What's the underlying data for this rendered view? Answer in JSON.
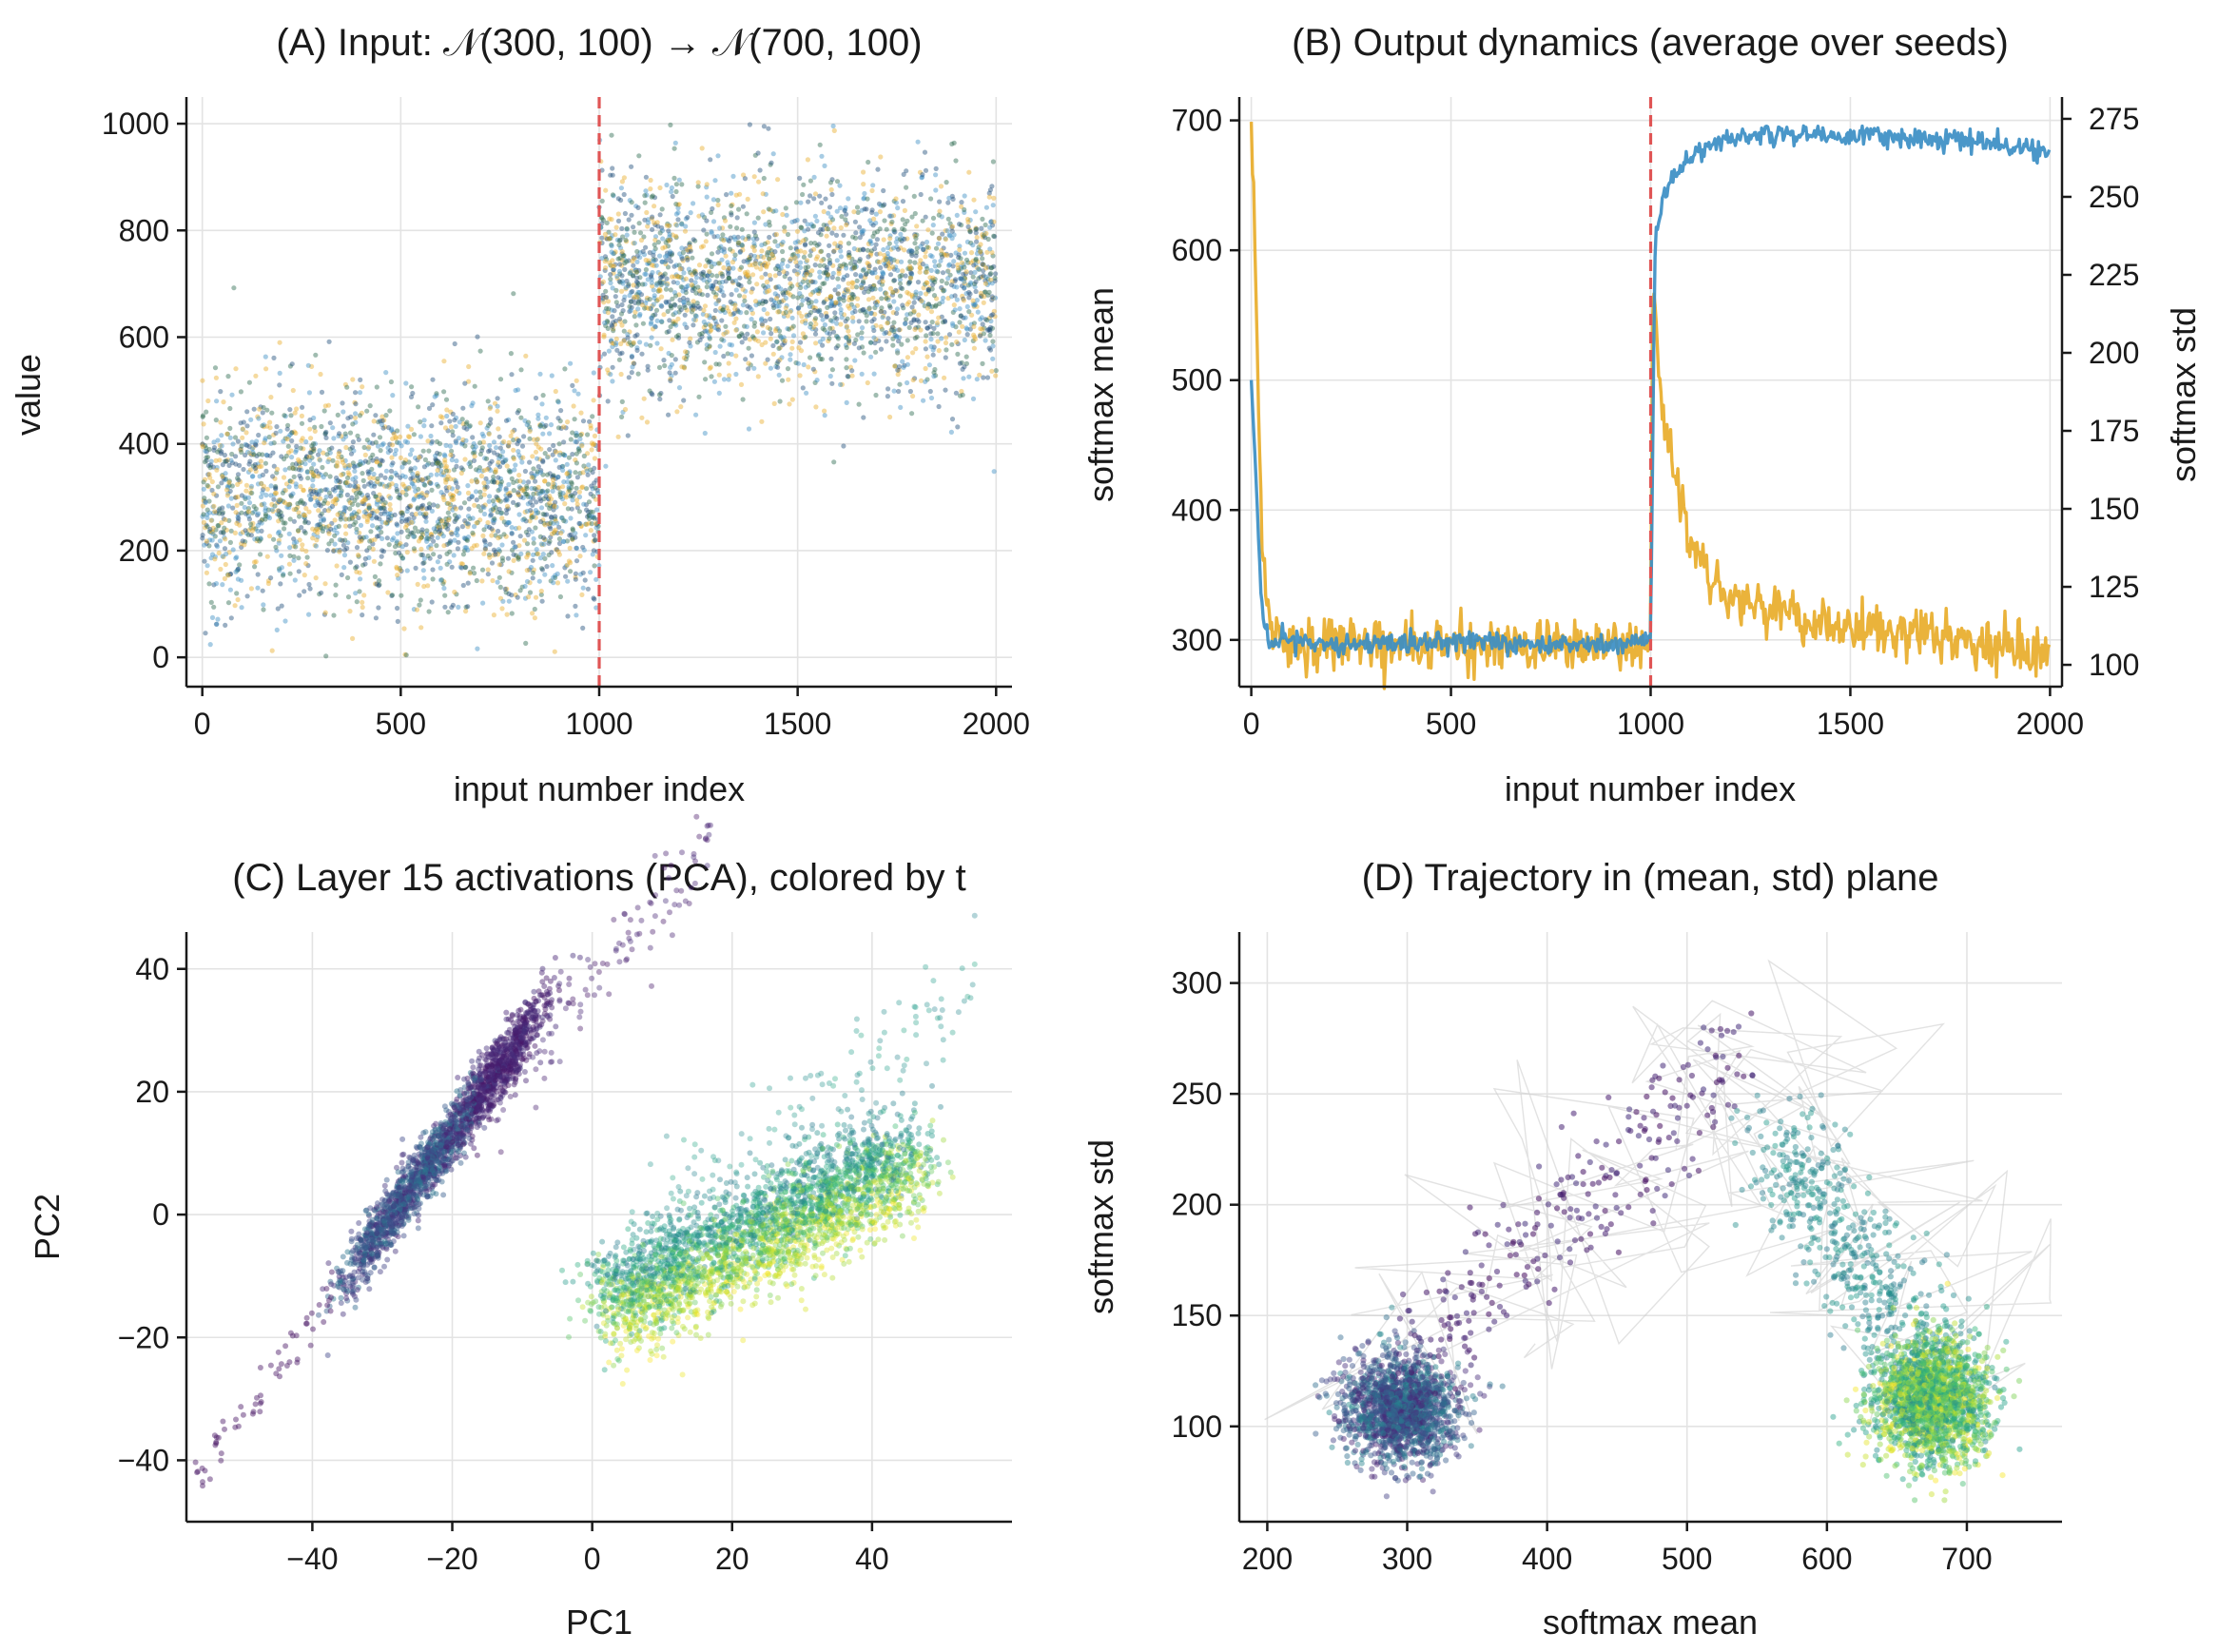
{
  "colors": {
    "mean": "#3b8ec4",
    "std": "#e8ad2a",
    "mean_text": "#2a7fb8",
    "std_text": "#dba11c",
    "change_line": "#e05555",
    "input_dots": [
      "#3b8ec4",
      "#e8ad2a",
      "#2d6a4f",
      "#1f4e79"
    ],
    "trajectory_line": "#cfcfcf"
  },
  "chart_data": [
    {
      "panel": "A",
      "type": "scatter",
      "title": "(A) Input: 𝒩(300, 100) → 𝒩(700, 100)",
      "xlabel": "input number index",
      "ylabel": "value",
      "xlim": [
        -40,
        2040
      ],
      "ylim": [
        -55,
        1050
      ],
      "xticks": [
        0,
        500,
        1000,
        1500,
        2000
      ],
      "yticks": [
        0,
        200,
        400,
        600,
        800,
        1000
      ],
      "grid": true,
      "segments": [
        {
          "x_range": [
            0,
            1000
          ],
          "mean": 300,
          "std": 100
        },
        {
          "x_range": [
            1000,
            2000
          ],
          "mean": 700,
          "std": 100
        }
      ],
      "change_point": 1000
    },
    {
      "panel": "B",
      "type": "line",
      "title": "(B) Output dynamics (average over seeds)",
      "xlabel": "input number index",
      "ylabel": "softmax mean",
      "ylabel_right": "softmax std",
      "xlim": [
        -30,
        2030
      ],
      "ylim": [
        264,
        718
      ],
      "ylim_right": [
        93,
        282
      ],
      "xticks": [
        0,
        500,
        1000,
        1500,
        2000
      ],
      "yticks": [
        300,
        400,
        500,
        600,
        700
      ],
      "yticks_right": [
        100,
        125,
        150,
        175,
        200,
        225,
        250,
        275
      ],
      "grid": true,
      "change_point": 1000,
      "series": [
        {
          "name": "softmax mean",
          "axis": "left",
          "x": [
            0,
            10,
            20,
            30,
            50,
            80,
            150,
            300,
            500,
            700,
            900,
            995,
            1000,
            1010,
            1030,
            1060,
            1100,
            1150,
            1200,
            1300,
            1400,
            1500,
            1600,
            1700,
            1800,
            1900,
            2000
          ],
          "values": [
            500,
            430,
            360,
            310,
            295,
            300,
            298,
            296,
            300,
            297,
            296,
            298,
            300,
            600,
            640,
            660,
            672,
            680,
            686,
            690,
            689,
            688,
            688,
            686,
            684,
            680,
            676
          ]
        },
        {
          "name": "softmax std",
          "axis": "right",
          "x": [
            0,
            10,
            20,
            30,
            50,
            80,
            150,
            300,
            500,
            700,
            900,
            995,
            1000,
            1005,
            1015,
            1030,
            1060,
            1100,
            1150,
            1200,
            1300,
            1400,
            1500,
            1600,
            1700,
            1800,
            1900,
            2000
          ],
          "values": [
            275,
            230,
            170,
            130,
            112,
            108,
            107,
            107,
            106,
            106,
            106,
            106,
            106,
            220,
            205,
            180,
            160,
            140,
            130,
            122,
            117,
            114,
            111,
            110,
            109,
            108,
            105,
            103
          ]
        }
      ]
    },
    {
      "panel": "C",
      "type": "scatter",
      "title": "(C) Layer 15 activations (PCA), colored by t",
      "xlabel": "PC1",
      "ylabel": "PC2",
      "xlim": [
        -58,
        60
      ],
      "ylim": [
        -50,
        46
      ],
      "xticks": [
        -40,
        -20,
        0,
        20,
        40
      ],
      "yticks": [
        -40,
        -20,
        0,
        20,
        40
      ],
      "grid": true,
      "colormap": "viridis"
    },
    {
      "panel": "D",
      "type": "scatter",
      "title": "(D) Trajectory in (mean, std) plane",
      "xlabel": "softmax mean",
      "ylabel": "softmax std",
      "xlim": [
        180,
        768
      ],
      "ylim": [
        57,
        323
      ],
      "xticks": [
        200,
        300,
        400,
        500,
        600,
        700
      ],
      "yticks": [
        100,
        150,
        200,
        250,
        300
      ],
      "grid": true,
      "colormap": "viridis",
      "clusters": [
        {
          "center": [
            295,
            108
          ],
          "spread": [
            20,
            12
          ]
        },
        {
          "center": [
            675,
            112
          ],
          "spread": [
            20,
            14
          ]
        }
      ]
    }
  ]
}
